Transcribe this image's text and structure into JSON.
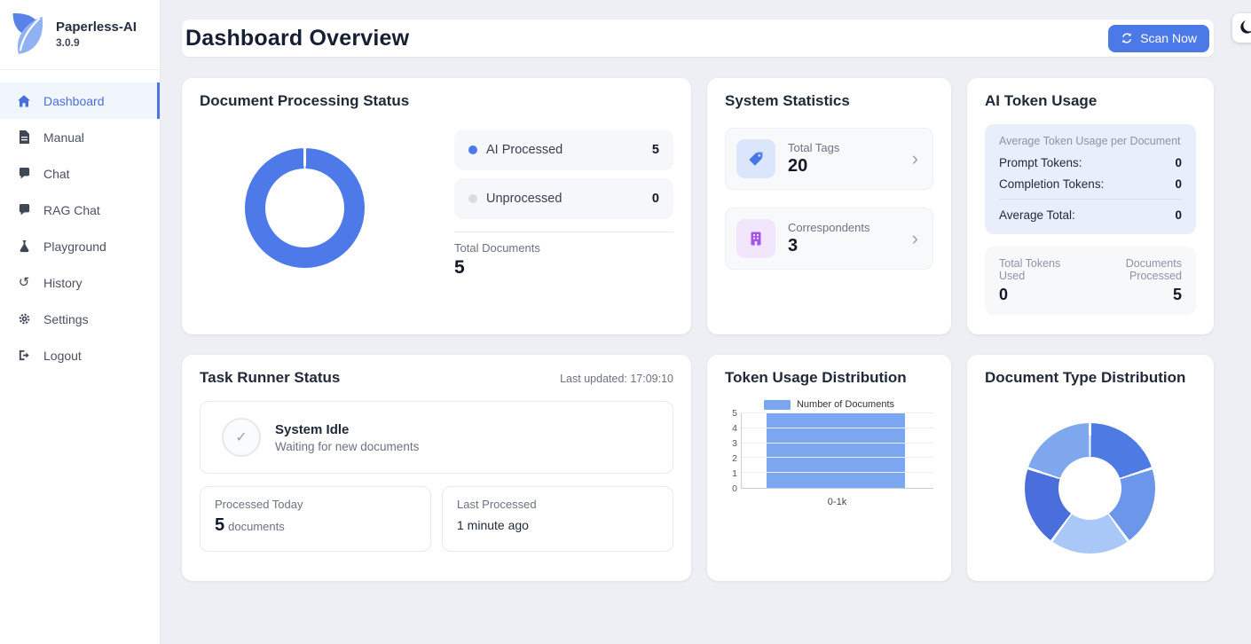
{
  "app": {
    "background": "#edeff4",
    "accent": "#4c79e8"
  },
  "sidebar": {
    "brand": {
      "name": "Paperless-AI",
      "version": "3.0.9",
      "logo_icon": "leaf-shield-icon"
    },
    "items": [
      {
        "label": "Dashboard",
        "icon": "home-icon",
        "active": true
      },
      {
        "label": "Manual",
        "icon": "document-icon",
        "active": false
      },
      {
        "label": "Chat",
        "icon": "chat-icon",
        "active": false
      },
      {
        "label": "RAG Chat",
        "icon": "chat-icon",
        "active": false
      },
      {
        "label": "Playground",
        "icon": "flask-icon",
        "active": false
      },
      {
        "label": "History",
        "icon": "history-icon",
        "active": false
      },
      {
        "label": "Settings",
        "icon": "gear-icon",
        "active": false
      },
      {
        "label": "Logout",
        "icon": "logout-icon",
        "active": false
      }
    ],
    "history_glyph": "↺"
  },
  "header": {
    "title": "Dashboard Overview",
    "scan_button_label": "Scan Now",
    "scan_button_color": "#4c79e8",
    "theme_toggle_icon": "moon-icon"
  },
  "cards": {
    "processing": {
      "title": "Document Processing Status",
      "legend": [
        {
          "label": "AI Processed",
          "value": "5",
          "color": "#4e79e8"
        },
        {
          "label": "Unprocessed",
          "value": "0",
          "color": "#d9dce1"
        }
      ],
      "total_label": "Total Documents",
      "total_value": "5"
    },
    "stats": {
      "title": "System Statistics",
      "rows": [
        {
          "label": "Total Tags",
          "value": "20",
          "icon": "tag-icon",
          "chevron": "›"
        },
        {
          "label": "Correspondents",
          "value": "3",
          "icon": "building-icon",
          "chevron": "›"
        }
      ]
    },
    "tokens": {
      "title": "AI Token Usage",
      "avg_header": "Average Token Usage per Document",
      "rows": [
        {
          "label": "Prompt Tokens:",
          "value": "0"
        },
        {
          "label": "Completion Tokens:",
          "value": "0"
        }
      ],
      "total_row": {
        "label": "Average Total:",
        "value": "0"
      },
      "footer": [
        {
          "label": "Total Tokens Used",
          "value": "0"
        },
        {
          "label": "Documents Processed",
          "value": "5"
        }
      ]
    },
    "task": {
      "title": "Task Runner Status",
      "last_updated": "Last updated: 17:09:10",
      "status_icon": "check-icon",
      "status_glyph": "✓",
      "status_title": "System Idle",
      "status_sub": "Waiting for new documents",
      "box_a": {
        "label": "Processed Today",
        "value": "5",
        "suffix": "documents"
      },
      "box_b": {
        "label": "Last Processed",
        "value": "1 minute ago"
      }
    },
    "token_dist": {
      "title": "Token Usage Distribution"
    },
    "doc_type": {
      "title": "Document Type Distribution"
    }
  },
  "chart_data": [
    {
      "id": "processing-donut",
      "type": "pie",
      "title": "Document Processing Status",
      "labels": [
        "AI Processed",
        "Unprocessed"
      ],
      "values": [
        5,
        0
      ],
      "colors": [
        "#4e79e8",
        "#d9dce1"
      ],
      "donut": true,
      "legend_position": "right"
    },
    {
      "id": "token-usage-bar",
      "type": "bar",
      "title": "Token Usage Distribution",
      "categories": [
        "0-1k"
      ],
      "values": [
        5
      ],
      "series_label": "Number of Documents",
      "bar_color": "#7ba6f0",
      "xlabel": "",
      "ylabel": "",
      "ylim": [
        0,
        5
      ],
      "yticks": [
        0,
        1,
        2,
        3,
        4,
        5
      ],
      "grid": true,
      "legend_position": "top"
    },
    {
      "id": "doc-type-donut",
      "type": "pie",
      "title": "Document Type Distribution",
      "values": [
        1,
        1,
        1,
        1,
        1
      ],
      "colors": [
        "#4e7ae4",
        "#6c96ea",
        "#a9c7f7",
        "#4a6fdc",
        "#7ea7ee"
      ],
      "donut": true,
      "legend_position": "none"
    }
  ]
}
